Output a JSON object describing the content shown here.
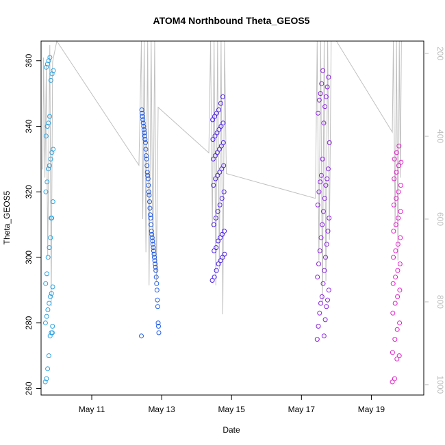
{
  "chart_data": {
    "type": "scatter",
    "title": "ATOM4 Northbound Theta_GEOS5",
    "xlabel": "Date",
    "ylabel": "Theta_GEOS5",
    "xlim": [
      9.55,
      20.5
    ],
    "ylim": [
      258,
      366
    ],
    "y2lim": [
      1025,
      170
    ],
    "x_ticks": [
      11,
      13,
      15,
      17,
      19
    ],
    "x_tick_labels": [
      "May 11",
      "May 13",
      "May 15",
      "May 17",
      "May 19"
    ],
    "y_ticks": [
      260,
      280,
      300,
      320,
      340,
      360
    ],
    "y2_ticks": [
      200,
      400,
      600,
      800,
      1000
    ],
    "grid": false,
    "legend": "none",
    "line_color": "#c0c0c0",
    "flights": [
      {
        "color": "#2aa2e0",
        "x_start": 9.67,
        "x_end": 9.9,
        "theta": [
          262,
          263,
          266,
          270,
          276,
          277,
          279,
          280,
          282,
          284,
          286,
          288,
          289,
          291,
          292,
          295,
          300,
          303,
          306,
          312,
          317,
          320,
          323,
          327,
          328,
          330,
          332,
          333,
          337,
          340,
          341,
          343,
          354,
          356,
          357,
          358,
          359,
          360,
          361,
          312,
          277
        ]
      },
      {
        "color": "#1e5ae8",
        "x_start": 12.42,
        "x_end": 12.92,
        "theta": [
          276,
          277,
          279,
          280,
          285,
          287,
          290,
          292,
          294,
          296,
          297,
          298,
          299,
          300,
          301,
          302,
          303,
          304,
          305,
          306,
          307,
          308,
          310,
          312,
          313,
          315,
          317,
          319,
          320,
          322,
          324,
          325,
          326,
          328,
          330,
          331,
          333,
          335,
          336,
          337,
          338,
          339,
          340,
          341,
          342,
          343,
          344,
          345
        ]
      },
      {
        "color": "#4a1ee8",
        "x_start": 14.45,
        "x_end": 14.8,
        "theta": [
          293,
          294,
          296,
          298,
          299,
          300,
          301,
          302,
          303,
          305,
          306,
          307,
          308,
          310,
          312,
          314,
          316,
          318,
          320,
          322,
          324,
          325,
          326,
          327,
          328,
          330,
          331,
          332,
          333,
          334,
          335,
          336,
          337,
          338,
          339,
          340,
          341,
          342,
          343,
          344,
          345,
          347,
          349
        ]
      },
      {
        "color": "#8a1ee0",
        "x_start": 17.45,
        "x_end": 17.8,
        "theta": [
          275,
          276,
          279,
          281,
          283,
          285,
          286,
          287,
          288,
          290,
          292,
          294,
          296,
          298,
          300,
          302,
          304,
          306,
          308,
          310,
          312,
          314,
          316,
          318,
          320,
          322,
          323,
          324,
          325,
          327,
          330,
          335,
          341,
          344,
          346,
          348,
          349,
          350,
          352,
          353,
          355,
          357
        ]
      },
      {
        "color": "#e01ec8",
        "x_start": 19.6,
        "x_end": 19.85,
        "theta": [
          262,
          263,
          269,
          270,
          271,
          275,
          278,
          280,
          283,
          286,
          288,
          290,
          292,
          294,
          296,
          298,
          300,
          302,
          304,
          306,
          308,
          310,
          312,
          314,
          316,
          318,
          320,
          322,
          324,
          326,
          328,
          329,
          330,
          332,
          334
        ]
      }
    ],
    "pressure_track": [
      [
        9.6,
        480
      ],
      [
        9.62,
        210
      ],
      [
        9.66,
        500
      ],
      [
        9.7,
        230
      ],
      [
        9.74,
        690
      ],
      [
        9.8,
        180
      ],
      [
        9.84,
        810
      ],
      [
        9.88,
        220
      ],
      [
        10.0,
        170
      ],
      [
        12.35,
        470
      ],
      [
        12.42,
        170
      ],
      [
        12.46,
        600
      ],
      [
        12.5,
        170
      ],
      [
        12.55,
        680
      ],
      [
        12.6,
        170
      ],
      [
        12.64,
        760
      ],
      [
        12.7,
        170
      ],
      [
        12.75,
        700
      ],
      [
        12.8,
        170
      ],
      [
        12.85,
        750
      ],
      [
        12.9,
        330
      ],
      [
        14.35,
        440
      ],
      [
        14.4,
        170
      ],
      [
        14.45,
        620
      ],
      [
        14.5,
        170
      ],
      [
        14.55,
        760
      ],
      [
        14.6,
        170
      ],
      [
        14.65,
        720
      ],
      [
        14.7,
        170
      ],
      [
        14.75,
        830
      ],
      [
        14.8,
        170
      ],
      [
        14.85,
        490
      ],
      [
        17.4,
        550
      ],
      [
        17.45,
        170
      ],
      [
        17.5,
        700
      ],
      [
        17.55,
        170
      ],
      [
        17.6,
        800
      ],
      [
        17.65,
        170
      ],
      [
        17.7,
        750
      ],
      [
        17.75,
        170
      ],
      [
        17.8,
        650
      ],
      [
        17.85,
        170
      ],
      [
        18.0,
        170
      ],
      [
        19.6,
        390
      ],
      [
        19.63,
        170
      ],
      [
        19.68,
        620
      ],
      [
        19.72,
        170
      ],
      [
        19.76,
        700
      ],
      [
        19.8,
        170
      ],
      [
        19.83,
        500
      ],
      [
        19.86,
        170
      ]
    ]
  }
}
